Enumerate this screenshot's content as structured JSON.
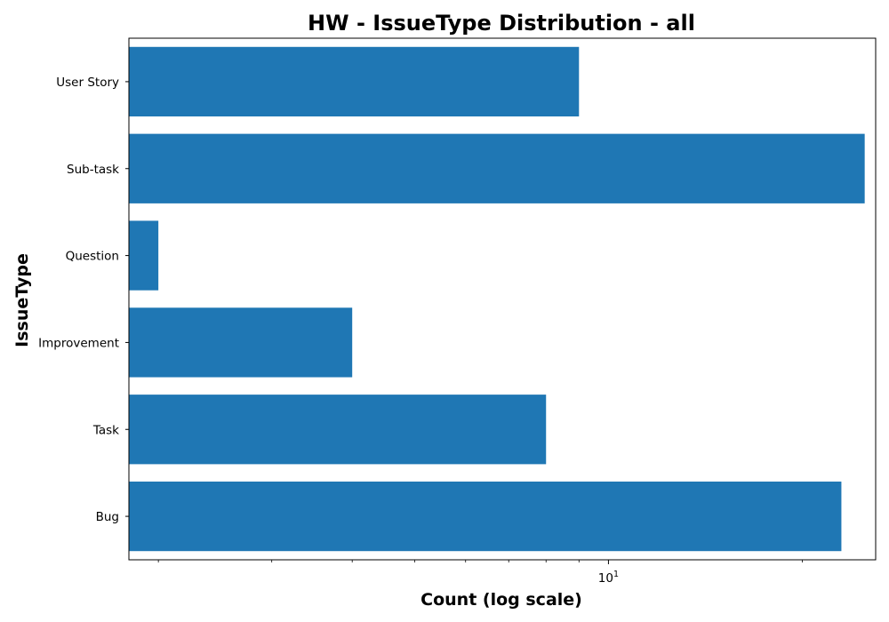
{
  "chart_data": {
    "type": "bar",
    "orientation": "horizontal",
    "title": "HW - IssueType Distribution - all",
    "xlabel": "Count (log scale)",
    "ylabel": "IssueType",
    "x_scale": "log",
    "xlim": [
      1.8,
      26
    ],
    "x_ticks": [
      {
        "value": 10,
        "base": "10",
        "exponent": "1"
      }
    ],
    "x_minor_ticks": [
      2,
      3,
      4,
      5,
      6,
      7,
      8,
      9,
      20
    ],
    "categories": [
      "Bug",
      "Task",
      "Improvement",
      "Question",
      "Sub-task",
      "User Story"
    ],
    "values": [
      23,
      8,
      4,
      2,
      25,
      9
    ],
    "grid": false,
    "colors": {
      "bar": "#1f77b4",
      "axis": "#000000"
    }
  }
}
